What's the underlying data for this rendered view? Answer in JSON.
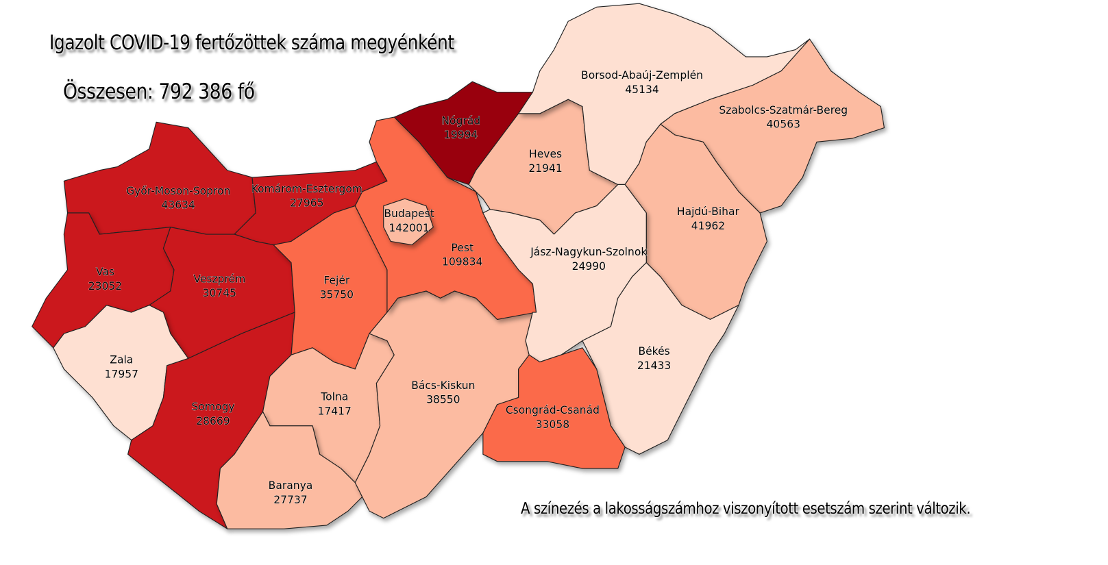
{
  "title": "Igazolt COVID-19 fertőzöttek száma megyénként",
  "total": "Összesen: 792 386 fő",
  "note": "A színezés a lakosságszámhoz viszonyított esetszám szerint változik.",
  "colors": {
    "level1": "#fee0d2",
    "level2": "#fcbba1",
    "level3": "#fb6a4a",
    "level4": "#cb181d",
    "level5": "#99000d"
  },
  "counties": [
    {
      "name": "Győr-Moson-Sopron",
      "value": "43634",
      "level": "level4"
    },
    {
      "name": "Komárom-Esztergom",
      "value": "27965",
      "level": "level4"
    },
    {
      "name": "Vas",
      "value": "23052",
      "level": "level4"
    },
    {
      "name": "Veszprém",
      "value": "30745",
      "level": "level4"
    },
    {
      "name": "Zala",
      "value": "17957",
      "level": "level1"
    },
    {
      "name": "Somogy",
      "value": "28669",
      "level": "level4"
    },
    {
      "name": "Fejér",
      "value": "35750",
      "level": "level3"
    },
    {
      "name": "Tolna",
      "value": "17417",
      "level": "level2"
    },
    {
      "name": "Baranya",
      "value": "27737",
      "level": "level2"
    },
    {
      "name": "Bács-Kiskun",
      "value": "38550",
      "level": "level2"
    },
    {
      "name": "Pest",
      "value": "109834",
      "level": "level3"
    },
    {
      "name": "Budapest",
      "value": "142001",
      "level": "level2"
    },
    {
      "name": "Nógrád",
      "value": "19994",
      "level": "level5"
    },
    {
      "name": "Heves",
      "value": "21941",
      "level": "level2"
    },
    {
      "name": "Borsod-Abaúj-Zemplén",
      "value": "45134",
      "level": "level1"
    },
    {
      "name": "Szabolcs-Szatmár-Bereg",
      "value": "40563",
      "level": "level2"
    },
    {
      "name": "Hajdú-Bihar",
      "value": "41962",
      "level": "level2"
    },
    {
      "name": "Jász-Nagykun-Szolnok",
      "value": "24990",
      "level": "level1"
    },
    {
      "name": "Békés",
      "value": "21433",
      "level": "level1"
    },
    {
      "name": "Csongrád-Csanád",
      "value": "33058",
      "level": "level3"
    }
  ]
}
